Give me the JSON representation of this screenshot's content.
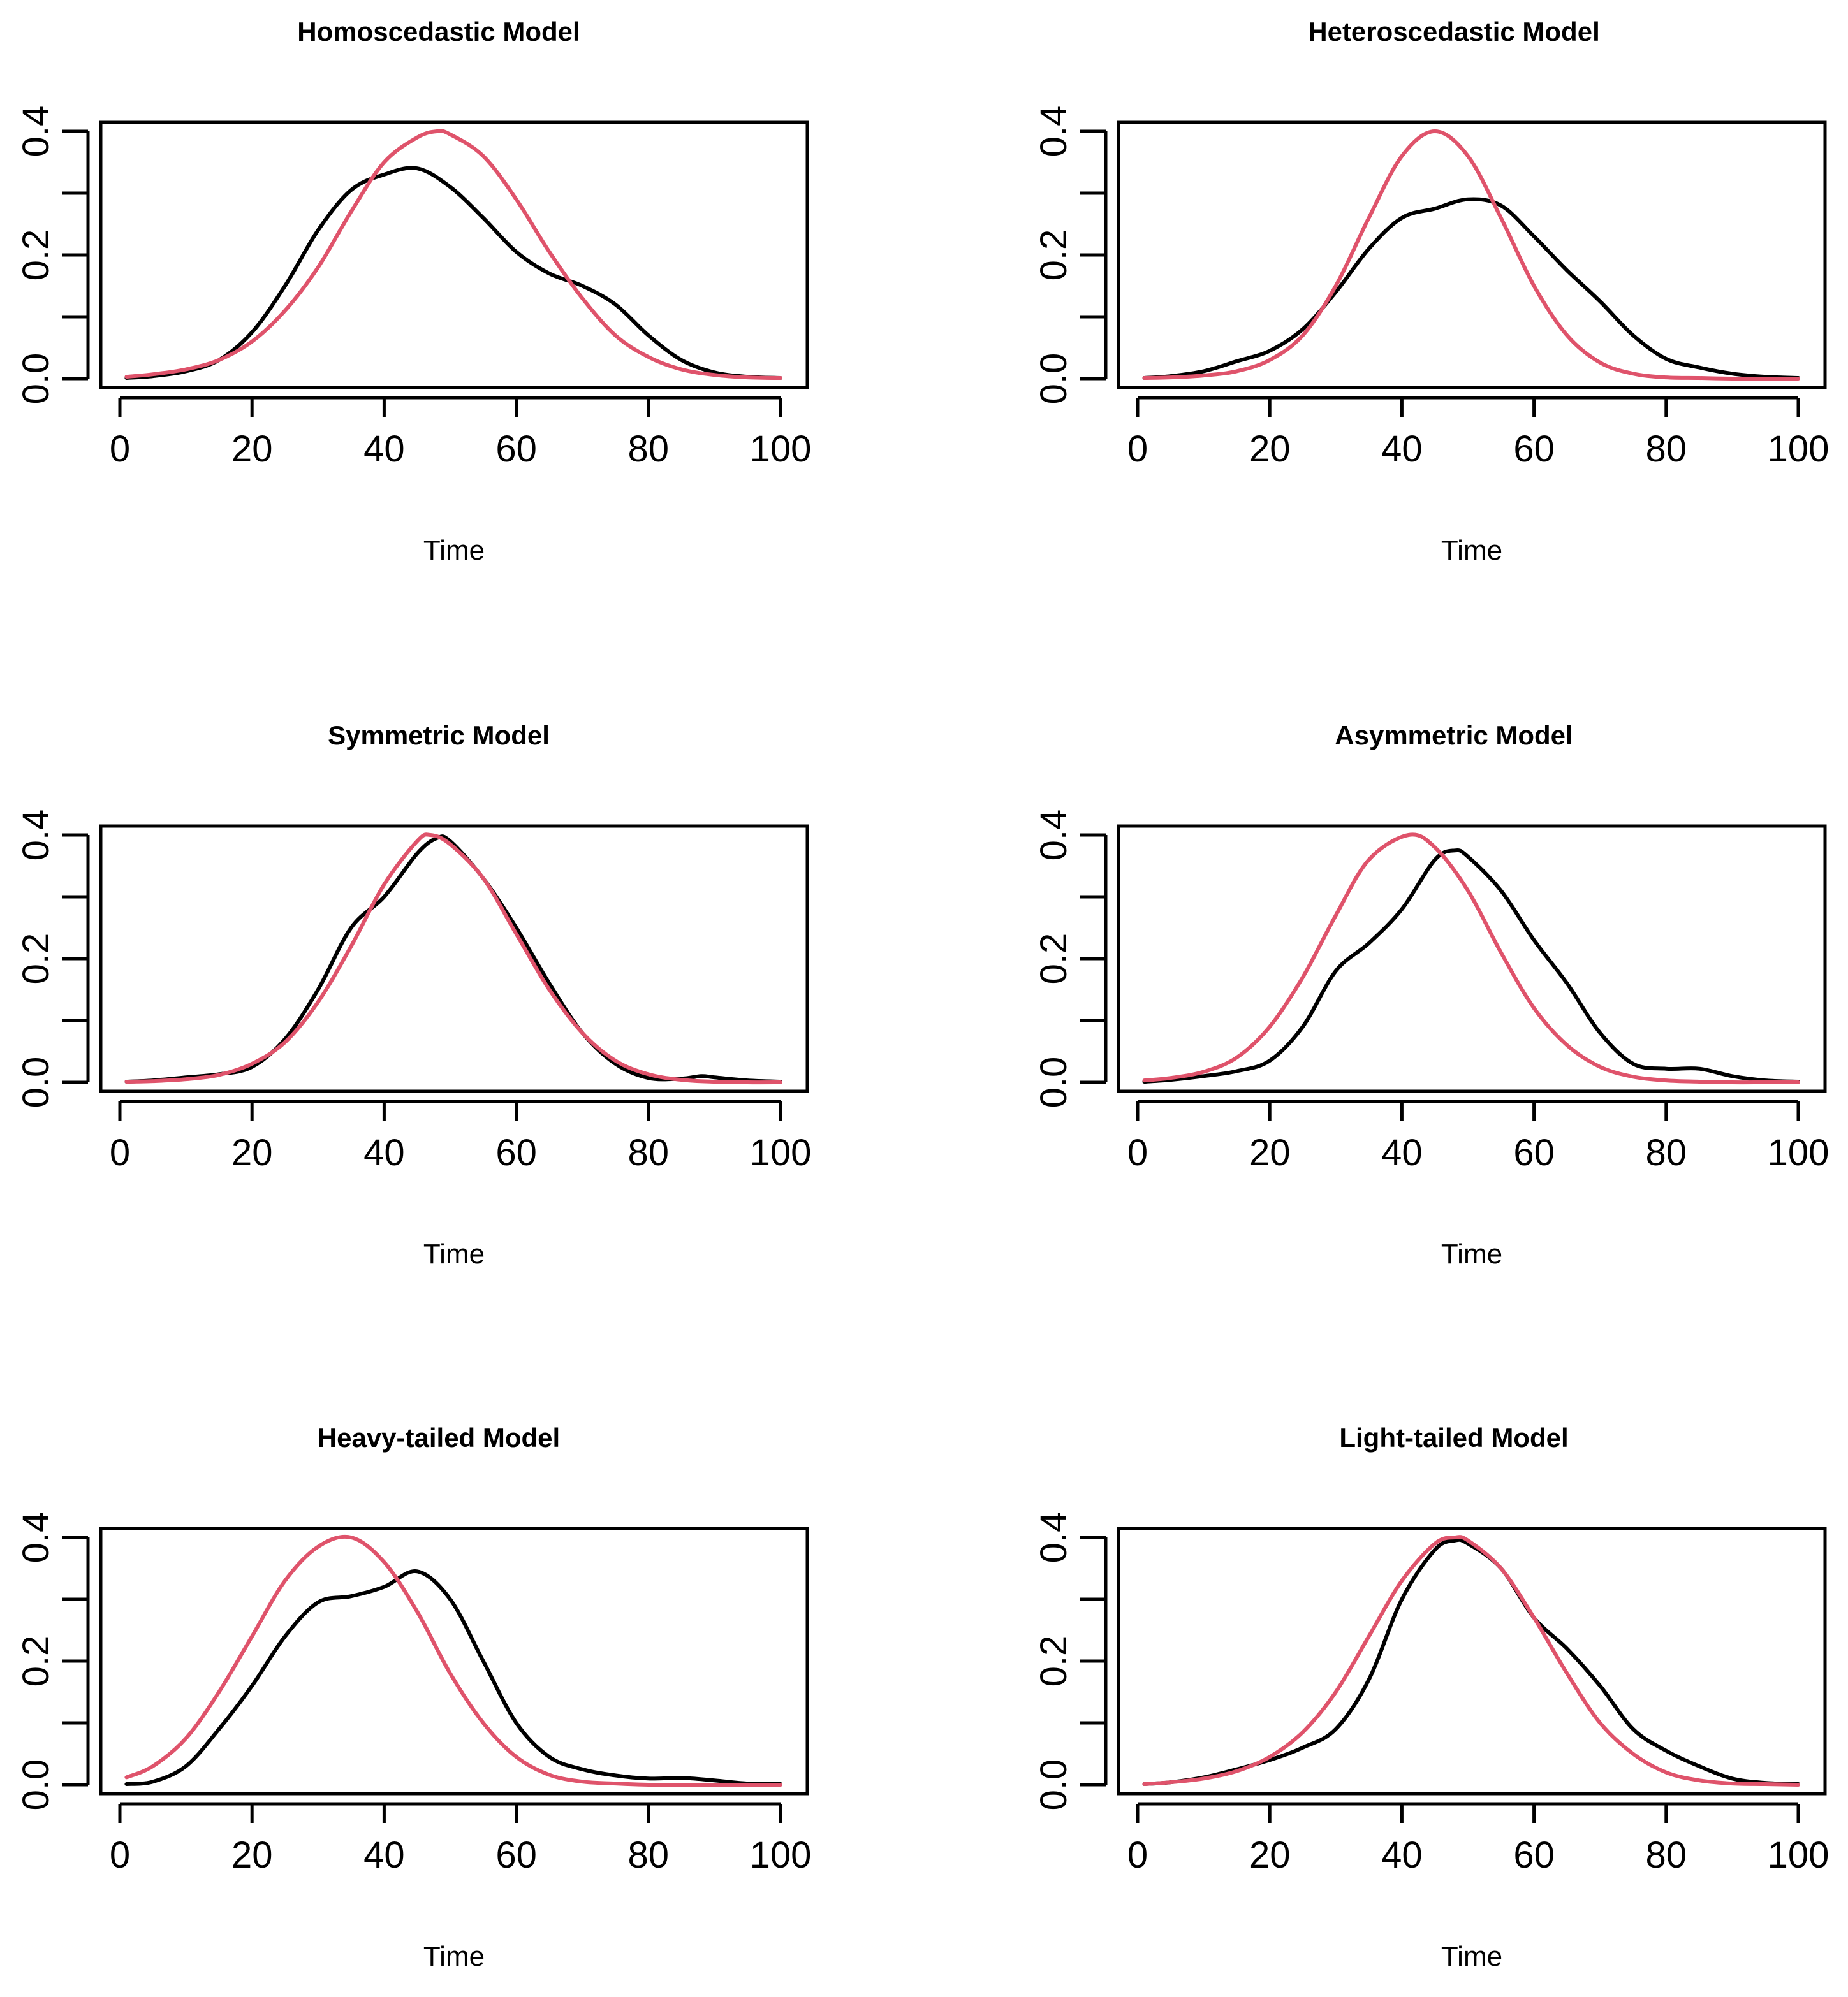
{
  "colors": {
    "empirical": "#000000",
    "reference": "#DF536B"
  },
  "chart_data": [
    {
      "type": "line",
      "title": "Homoscedastic Model",
      "xlabel": "Time",
      "ylabel": "",
      "xlim": [
        0,
        100
      ],
      "ylim": [
        0,
        0.4
      ],
      "x_ticks": [
        0,
        20,
        40,
        60,
        80,
        100
      ],
      "y_ticks": [
        0,
        0.1,
        0.2,
        0.3,
        0.4
      ],
      "y_tick_labels": [
        "0.0",
        "0.2",
        "0.4"
      ],
      "series": [
        {
          "color": "#000000",
          "x": [
            1,
            5,
            10,
            15,
            20,
            25,
            30,
            35,
            40,
            45,
            50,
            55,
            60,
            65,
            70,
            75,
            80,
            85,
            90,
            95,
            100
          ],
          "values": [
            0.001,
            0.004,
            0.012,
            0.03,
            0.075,
            0.15,
            0.24,
            0.305,
            0.33,
            0.34,
            0.31,
            0.26,
            0.205,
            0.17,
            0.15,
            0.12,
            0.07,
            0.03,
            0.01,
            0.003,
            0.001
          ]
        },
        {
          "color": "#DF536B",
          "x": [
            1,
            5,
            10,
            15,
            20,
            25,
            30,
            35,
            40,
            45,
            48,
            50,
            55,
            60,
            65,
            70,
            75,
            80,
            85,
            90,
            95,
            100
          ],
          "values": [
            0.003,
            0.007,
            0.015,
            0.03,
            0.06,
            0.11,
            0.18,
            0.27,
            0.35,
            0.39,
            0.4,
            0.395,
            0.36,
            0.29,
            0.205,
            0.13,
            0.07,
            0.035,
            0.015,
            0.006,
            0.002,
            0.001
          ]
        }
      ]
    },
    {
      "type": "line",
      "title": "Heteroscedastic Model",
      "xlabel": "Time",
      "ylabel": "",
      "xlim": [
        0,
        100
      ],
      "ylim": [
        0,
        0.4
      ],
      "x_ticks": [
        0,
        20,
        40,
        60,
        80,
        100
      ],
      "y_ticks": [
        0,
        0.1,
        0.2,
        0.3,
        0.4
      ],
      "y_tick_labels": [
        "0.0",
        "0.2",
        "0.4"
      ],
      "series": [
        {
          "color": "#000000",
          "x": [
            1,
            5,
            10,
            15,
            20,
            25,
            30,
            35,
            40,
            45,
            50,
            55,
            60,
            65,
            70,
            75,
            80,
            85,
            90,
            95,
            100
          ],
          "values": [
            0.001,
            0.004,
            0.012,
            0.028,
            0.045,
            0.08,
            0.14,
            0.21,
            0.26,
            0.275,
            0.29,
            0.28,
            0.23,
            0.175,
            0.125,
            0.07,
            0.032,
            0.018,
            0.008,
            0.003,
            0.001
          ]
        },
        {
          "color": "#DF536B",
          "x": [
            1,
            5,
            10,
            15,
            20,
            25,
            30,
            35,
            40,
            45,
            50,
            55,
            60,
            65,
            70,
            75,
            80,
            85,
            90,
            95,
            100
          ],
          "values": [
            0.001,
            0.002,
            0.005,
            0.012,
            0.03,
            0.07,
            0.15,
            0.26,
            0.36,
            0.4,
            0.36,
            0.26,
            0.15,
            0.07,
            0.026,
            0.008,
            0.002,
            0.001,
            0.0,
            0.0,
            0.0
          ]
        }
      ]
    },
    {
      "type": "line",
      "title": "Symmetric  Model",
      "xlabel": "Time",
      "ylabel": "",
      "xlim": [
        0,
        100
      ],
      "ylim": [
        0,
        0.4
      ],
      "x_ticks": [
        0,
        20,
        40,
        60,
        80,
        100
      ],
      "y_ticks": [
        0,
        0.1,
        0.2,
        0.3,
        0.4
      ],
      "y_tick_labels": [
        "0.0",
        "0.2",
        "0.4"
      ],
      "series": [
        {
          "color": "#000000",
          "x": [
            1,
            5,
            10,
            15,
            20,
            25,
            30,
            35,
            40,
            45,
            48,
            50,
            55,
            60,
            65,
            70,
            75,
            80,
            85,
            88,
            90,
            95,
            100
          ],
          "values": [
            0.001,
            0.003,
            0.008,
            0.013,
            0.025,
            0.07,
            0.15,
            0.25,
            0.3,
            0.37,
            0.395,
            0.39,
            0.33,
            0.25,
            0.16,
            0.08,
            0.03,
            0.007,
            0.006,
            0.01,
            0.008,
            0.003,
            0.001
          ]
        },
        {
          "color": "#DF536B",
          "x": [
            1,
            5,
            10,
            15,
            20,
            25,
            30,
            35,
            40,
            45,
            47,
            50,
            55,
            60,
            65,
            70,
            75,
            80,
            85,
            90,
            95,
            100
          ],
          "values": [
            0.001,
            0.002,
            0.005,
            0.012,
            0.03,
            0.065,
            0.13,
            0.22,
            0.32,
            0.39,
            0.4,
            0.385,
            0.33,
            0.24,
            0.15,
            0.08,
            0.035,
            0.013,
            0.004,
            0.001,
            0.0,
            0.0
          ]
        }
      ]
    },
    {
      "type": "line",
      "title": "Asymmetric  Model",
      "xlabel": "Time",
      "ylabel": "",
      "xlim": [
        0,
        100
      ],
      "ylim": [
        0,
        0.4
      ],
      "x_ticks": [
        0,
        20,
        40,
        60,
        80,
        100
      ],
      "y_ticks": [
        0,
        0.1,
        0.2,
        0.3,
        0.4
      ],
      "y_tick_labels": [
        "0.0",
        "0.2",
        "0.4"
      ],
      "series": [
        {
          "color": "#000000",
          "x": [
            1,
            5,
            10,
            15,
            20,
            25,
            30,
            35,
            40,
            45,
            48,
            50,
            55,
            60,
            65,
            70,
            75,
            80,
            85,
            90,
            95,
            100
          ],
          "values": [
            0.001,
            0.004,
            0.01,
            0.018,
            0.035,
            0.09,
            0.18,
            0.225,
            0.28,
            0.36,
            0.375,
            0.365,
            0.31,
            0.23,
            0.16,
            0.08,
            0.03,
            0.022,
            0.022,
            0.01,
            0.003,
            0.001
          ]
        },
        {
          "color": "#DF536B",
          "x": [
            1,
            5,
            10,
            15,
            20,
            25,
            30,
            35,
            41,
            45,
            50,
            55,
            60,
            65,
            70,
            75,
            80,
            85,
            90,
            95,
            100
          ],
          "values": [
            0.003,
            0.007,
            0.017,
            0.04,
            0.09,
            0.17,
            0.27,
            0.36,
            0.4,
            0.38,
            0.31,
            0.21,
            0.12,
            0.06,
            0.025,
            0.009,
            0.003,
            0.001,
            0.0,
            0.0,
            0.0
          ]
        }
      ]
    },
    {
      "type": "line",
      "title": "Heavy-tailed  Model",
      "xlabel": "Time",
      "ylabel": "",
      "xlim": [
        0,
        100
      ],
      "ylim": [
        0,
        0.4
      ],
      "x_ticks": [
        0,
        20,
        40,
        60,
        80,
        100
      ],
      "y_ticks": [
        0,
        0.1,
        0.2,
        0.3,
        0.4
      ],
      "y_tick_labels": [
        "0.0",
        "0.2",
        "0.4"
      ],
      "series": [
        {
          "color": "#000000",
          "x": [
            1,
            5,
            10,
            15,
            20,
            25,
            30,
            35,
            40,
            45,
            50,
            55,
            60,
            65,
            70,
            75,
            80,
            85,
            90,
            95,
            100
          ],
          "values": [
            0.001,
            0.005,
            0.03,
            0.09,
            0.16,
            0.24,
            0.295,
            0.305,
            0.32,
            0.345,
            0.3,
            0.2,
            0.1,
            0.045,
            0.025,
            0.015,
            0.01,
            0.011,
            0.007,
            0.002,
            0.001
          ]
        },
        {
          "color": "#DF536B",
          "x": [
            1,
            5,
            10,
            15,
            20,
            25,
            30,
            35,
            40,
            45,
            50,
            55,
            60,
            65,
            70,
            75,
            80,
            85,
            90,
            95,
            100
          ],
          "values": [
            0.012,
            0.03,
            0.075,
            0.15,
            0.24,
            0.33,
            0.385,
            0.4,
            0.36,
            0.28,
            0.18,
            0.1,
            0.045,
            0.016,
            0.005,
            0.002,
            0.0,
            0.0,
            0.0,
            0.0,
            0.0
          ]
        }
      ]
    },
    {
      "type": "line",
      "title": "Light-tailed  Model",
      "xlabel": "Time",
      "ylabel": "",
      "xlim": [
        0,
        100
      ],
      "ylim": [
        0,
        0.4
      ],
      "x_ticks": [
        0,
        20,
        40,
        60,
        80,
        100
      ],
      "y_ticks": [
        0,
        0.1,
        0.2,
        0.3,
        0.4
      ],
      "y_tick_labels": [
        "0.0",
        "0.2",
        "0.4"
      ],
      "series": [
        {
          "color": "#000000",
          "x": [
            1,
            5,
            10,
            15,
            20,
            25,
            30,
            35,
            40,
            45,
            48,
            50,
            55,
            60,
            65,
            70,
            75,
            80,
            85,
            90,
            95,
            100
          ],
          "values": [
            0.001,
            0.004,
            0.012,
            0.025,
            0.04,
            0.06,
            0.09,
            0.17,
            0.3,
            0.38,
            0.395,
            0.39,
            0.35,
            0.27,
            0.22,
            0.16,
            0.09,
            0.055,
            0.03,
            0.01,
            0.003,
            0.001
          ]
        },
        {
          "color": "#DF536B",
          "x": [
            1,
            5,
            10,
            15,
            20,
            25,
            30,
            35,
            40,
            45,
            48,
            50,
            55,
            60,
            65,
            70,
            75,
            80,
            85,
            90,
            95,
            100
          ],
          "values": [
            0.001,
            0.004,
            0.01,
            0.022,
            0.045,
            0.085,
            0.15,
            0.24,
            0.33,
            0.39,
            0.4,
            0.395,
            0.35,
            0.27,
            0.18,
            0.1,
            0.05,
            0.02,
            0.007,
            0.002,
            0.001,
            0.0
          ]
        }
      ]
    }
  ]
}
